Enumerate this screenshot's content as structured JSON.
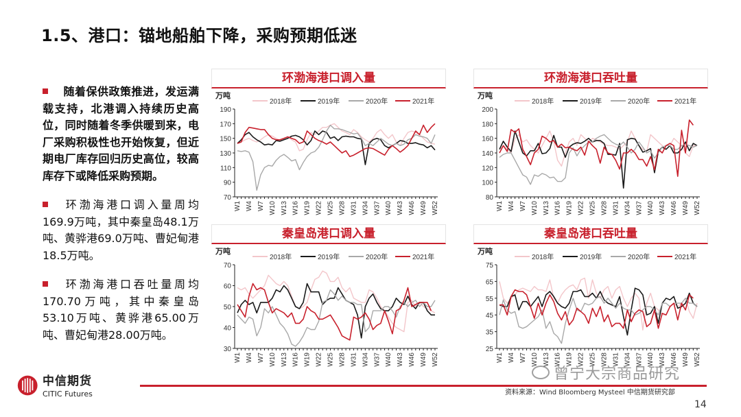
{
  "title": "1.5、港口：锚地船舶下降，采购预期低迷",
  "bullets": [
    "随着保供政策推进，发运满载支持，北港调入持续历史高位，同时随着冬季供暖到来，电厂采购积极性也开始恢复，但近期电厂库存回归历史高位，较高库存下或降低采购预期。",
    "环渤海港口调入量周均169.9万吨，其中秦皇岛48.1万吨、黄骅港69.0万吨、曹妃甸港18.5万吨。",
    "环渤海港口吞吐量周均170.70万吨，其中秦皇岛53.10万吨、黄骅港65.00万吨、曹妃甸港28.00万吨。"
  ],
  "footer": {
    "logo_cn": "中信期货",
    "logo_en": "CITIC Futures",
    "source": "资料来源：Wind Bloomberg Mysteel 中信期货研究部",
    "page": "14",
    "watermark": "曾宁大宗商品研究"
  },
  "series_colors": {
    "2018年": "#f3c6ca",
    "2019年": "#1a1a1a",
    "2020年": "#a8a8a8",
    "2021年": "#c8202c"
  },
  "chart_data": [
    {
      "type": "line",
      "title": "环渤海港口调入量",
      "ylabel": "万吨",
      "ylim": [
        70,
        190
      ],
      "ystep": 20,
      "x_ticks": [
        "W1",
        "W4",
        "W7",
        "W10",
        "W13",
        "W16",
        "W19",
        "W22",
        "W25",
        "W28",
        "W31",
        "W34",
        "W37",
        "W40",
        "W43",
        "W46",
        "W49",
        "W52"
      ],
      "legend": "top",
      "series": [
        {
          "name": "2018年",
          "values": [
            143,
            145,
            148,
            150,
            147,
            145,
            148,
            152,
            155,
            153,
            150,
            147,
            150,
            152,
            148,
            145,
            133,
            135,
            148,
            158,
            155,
            160,
            165,
            165,
            168,
            170,
            165,
            160,
            158,
            155,
            162,
            158,
            152,
            148,
            145,
            150,
            158,
            162,
            155,
            150,
            155,
            145,
            140,
            150,
            158,
            160,
            158,
            155,
            150,
            145,
            143,
            142
          ]
        },
        {
          "name": "2019年",
          "values": [
            143,
            148,
            155,
            158,
            152,
            148,
            145,
            141,
            142,
            141,
            147,
            146,
            148,
            150,
            153,
            154,
            152,
            148,
            141,
            147,
            160,
            155,
            160,
            158,
            150,
            152,
            147,
            152,
            153,
            152,
            152,
            150,
            149,
            114,
            143,
            148,
            150,
            148,
            140,
            137,
            140,
            143,
            147,
            146,
            143,
            143,
            144,
            142,
            141,
            137,
            140,
            134
          ]
        },
        {
          "name": "2020年",
          "values": [
            133,
            132,
            133,
            131,
            118,
            79,
            100,
            110,
            113,
            112,
            120,
            125,
            128,
            124,
            119,
            121,
            107,
            117,
            125,
            130,
            132,
            138,
            148,
            160,
            168,
            163,
            163,
            162,
            160,
            158,
            156,
            157,
            150,
            140,
            143,
            140,
            145,
            150,
            146,
            142,
            140,
            143,
            140,
            142,
            148,
            150,
            155,
            153,
            152,
            150,
            143,
            155
          ]
        },
        {
          "name": "2021年",
          "values": [
            143,
            145,
            158,
            165,
            164,
            163,
            162,
            162,
            155,
            150,
            148,
            148,
            150,
            152,
            150,
            148,
            143,
            145,
            160,
            155,
            150,
            147,
            145,
            142,
            145,
            140,
            135,
            130,
            133,
            125,
            127,
            130,
            133,
            136,
            137,
            136,
            133,
            130,
            127,
            135,
            140,
            136,
            131,
            135,
            140,
            150,
            160,
            155,
            168,
            158,
            165,
            170
          ]
        }
      ]
    },
    {
      "type": "line",
      "title": "环渤海港口吞吐量",
      "ylabel": "万吨",
      "ylim": [
        80,
        200
      ],
      "ystep": 20,
      "x_ticks": [
        "W1",
        "W4",
        "W7",
        "W10",
        "W13",
        "W16",
        "W19",
        "W22",
        "W25",
        "W28",
        "W31",
        "W34",
        "W37",
        "W40",
        "W43",
        "W46",
        "W49",
        "W52"
      ],
      "legend": "top",
      "series": [
        {
          "name": "2018年",
          "values": [
            145,
            150,
            145,
            140,
            160,
            165,
            155,
            158,
            150,
            145,
            140,
            150,
            160,
            170,
            155,
            130,
            122,
            140,
            155,
            160,
            150,
            165,
            160,
            155,
            160,
            158,
            155,
            152,
            150,
            150,
            148,
            145,
            150,
            155,
            170,
            160,
            150,
            145,
            142,
            165,
            160,
            155,
            150,
            145,
            150,
            160,
            155,
            150,
            140,
            135,
            150,
            150
          ]
        },
        {
          "name": "2019年",
          "values": [
            145,
            156,
            148,
            142,
            170,
            155,
            140,
            136,
            143,
            143,
            153,
            139,
            140,
            146,
            164,
            148,
            148,
            134,
            148,
            152,
            154,
            153,
            156,
            160,
            155,
            157,
            157,
            153,
            138,
            138,
            137,
            153,
            92,
            158,
            160,
            159,
            150,
            141,
            143,
            146,
            113,
            142,
            148,
            145,
            150,
            140,
            140,
            145,
            155,
            143,
            153,
            150
          ]
        },
        {
          "name": "2020年",
          "values": [
            134,
            138,
            140,
            140,
            130,
            120,
            110,
            107,
            97,
            110,
            108,
            112,
            110,
            106,
            107,
            101,
            101,
            106,
            140,
            147,
            136,
            145,
            150,
            155,
            155,
            160,
            163,
            165,
            160,
            155,
            152,
            150,
            155,
            148,
            140,
            145,
            155,
            148,
            140,
            143,
            133,
            140,
            148,
            150,
            150,
            145,
            145,
            150,
            152,
            150,
            148,
            150
          ]
        },
        {
          "name": "2021年",
          "values": [
            140,
            150,
            142,
            172,
            168,
            173,
            145,
            135,
            124,
            140,
            145,
            163,
            160,
            155,
            157,
            148,
            152,
            147,
            148,
            145,
            143,
            148,
            137,
            156,
            150,
            145,
            126,
            148,
            140,
            138,
            130,
            118,
            140,
            140,
            145,
            140,
            131,
            131,
            122,
            135,
            117,
            145,
            140,
            150,
            153,
            150,
            108,
            171,
            140,
            185,
            178
          ]
        }
      ]
    },
    {
      "type": "line",
      "title": "秦皇岛港口调入量",
      "ylabel": "万吨",
      "ylim": [
        30,
        70
      ],
      "ystep": 10,
      "x_ticks": [
        "W1",
        "W4",
        "W7",
        "W10",
        "W13",
        "W16",
        "W19",
        "W22",
        "W25",
        "W28",
        "W31",
        "W34",
        "W37",
        "W40",
        "W43",
        "W46",
        "W49",
        "W52"
      ],
      "legend": "top",
      "series": [
        {
          "name": "2018年",
          "values": [
            59,
            58,
            59,
            56,
            54,
            56,
            58,
            60,
            65,
            63,
            61,
            60,
            62,
            60,
            55,
            50,
            49,
            50,
            52,
            58,
            63,
            64,
            67,
            66,
            62,
            62,
            64,
            59,
            57,
            59,
            54,
            53,
            52,
            52,
            58,
            57,
            54,
            50,
            48,
            45,
            42,
            40,
            39,
            38,
            52,
            53,
            50,
            52,
            50,
            49,
            48,
            47
          ]
        },
        {
          "name": "2019年",
          "values": [
            47,
            51,
            53,
            51,
            52,
            47,
            52,
            52,
            52,
            54,
            58,
            57,
            60,
            58,
            54,
            50,
            49,
            52,
            61,
            57,
            57,
            57,
            51,
            53,
            54,
            54,
            59,
            56,
            53,
            52,
            51,
            46,
            35,
            50,
            54,
            56,
            52,
            49,
            48,
            48,
            50,
            54,
            52,
            51,
            55,
            51,
            49,
            52,
            52,
            48,
            46,
            46
          ]
        },
        {
          "name": "2020年",
          "values": [
            46,
            44,
            42,
            45,
            44,
            36,
            40,
            49,
            47,
            50,
            46,
            42,
            40,
            37,
            32,
            31,
            33,
            36,
            40,
            39,
            39,
            43,
            52,
            53,
            58,
            56,
            53,
            55,
            53,
            52,
            52,
            51,
            51,
            38,
            40,
            48,
            48,
            48,
            50,
            50,
            48,
            45,
            50,
            52,
            50,
            52,
            53,
            50,
            52,
            50,
            50,
            53
          ]
        },
        {
          "name": "2021年",
          "values": [
            51,
            48,
            45,
            55,
            61,
            58,
            59,
            58,
            52,
            47,
            49,
            48,
            47,
            45,
            47,
            42,
            42,
            44,
            50,
            48,
            47,
            44,
            44,
            45,
            46,
            43,
            40,
            36,
            35,
            34,
            45,
            44,
            45,
            47,
            44,
            39,
            41,
            42,
            48,
            43,
            37,
            48,
            49,
            53,
            59,
            50,
            51,
            52,
            52,
            52,
            48
          ]
        }
      ]
    },
    {
      "type": "line",
      "title": "秦皇岛港口吞吐量",
      "ylabel": "万吨",
      "ylim": [
        25,
        75
      ],
      "ystep": 10,
      "x_ticks": [
        "W1",
        "W4",
        "W7",
        "W10",
        "W13",
        "W16",
        "W19",
        "W22",
        "W25",
        "W28",
        "W31",
        "W34",
        "W37",
        "W40",
        "W43",
        "W46",
        "W49",
        "W52"
      ],
      "legend": "top",
      "series": [
        {
          "name": "2018年",
          "values": [
            65,
            55,
            52,
            55,
            57,
            60,
            61,
            60,
            59,
            62,
            60,
            60,
            59,
            66,
            55,
            52,
            57,
            60,
            62,
            63,
            60,
            66,
            67,
            55,
            66,
            58,
            55,
            60,
            62,
            55,
            60,
            62,
            55,
            50,
            55,
            58,
            55,
            36,
            52,
            58,
            50,
            48,
            45,
            45,
            50,
            52,
            50,
            52,
            55,
            47,
            43,
            52
          ]
        },
        {
          "name": "2019年",
          "values": [
            51,
            50,
            50,
            56,
            57,
            48,
            53,
            53,
            50,
            53,
            56,
            50,
            57,
            59,
            56,
            52,
            50,
            49,
            52,
            59,
            59,
            60,
            56,
            56,
            58,
            55,
            59,
            54,
            52,
            51,
            50,
            56,
            44,
            33,
            48,
            61,
            60,
            57,
            45,
            46,
            50,
            40,
            52,
            55,
            54,
            56,
            49,
            50,
            52,
            58,
            52,
            50
          ]
        },
        {
          "name": "2020年",
          "values": [
            45,
            54,
            48,
            46,
            47,
            38,
            37,
            38,
            40,
            42,
            44,
            48,
            37,
            41,
            34,
            32,
            28,
            40,
            48,
            55,
            48,
            47,
            52,
            51,
            52,
            55,
            56,
            52,
            55,
            52,
            49,
            52,
            49,
            48,
            48,
            45,
            46,
            48,
            50,
            50,
            48,
            45,
            52,
            52,
            50,
            52,
            52,
            52,
            55,
            52,
            52,
            50
          ]
        },
        {
          "name": "2021年",
          "values": [
            51,
            51,
            45,
            56,
            60,
            59,
            59,
            57,
            50,
            43,
            52,
            45,
            52,
            57,
            53,
            46,
            42,
            47,
            39,
            42,
            49,
            47,
            45,
            40,
            49,
            44,
            50,
            41,
            45,
            38,
            40,
            40,
            37,
            48,
            41,
            46,
            48,
            47,
            38,
            40,
            48,
            37,
            46,
            45,
            50,
            52,
            42,
            52,
            48,
            57,
            55
          ]
        }
      ]
    }
  ]
}
